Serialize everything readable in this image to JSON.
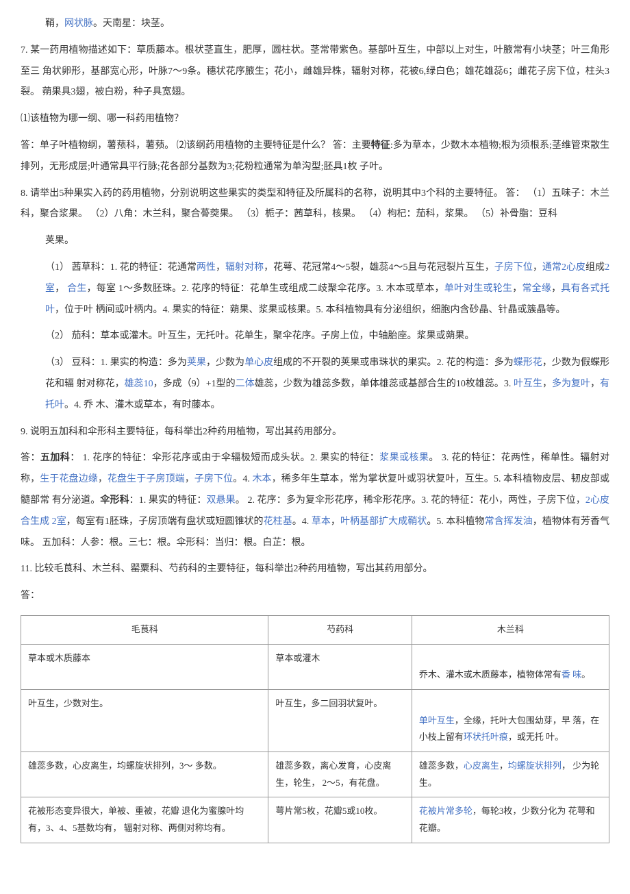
{
  "p1": {
    "pre": "鞘，",
    "link": "网状脉",
    "post": "。天南星：块茎。"
  },
  "q7": "7. 某一药用植物描述如下：草质藤本。根状茎直生，肥厚，圆柱状。茎常带紫色。基部叶互生，中部以上对生，叶腋常有小块茎；叶三角形至三 角状卵形，基部宽心形，叶脉7～9条。穗状花序腋生；花小，雌雄异株，辐射对称，花被6,绿白色；雄花雄蕊6；雌花子房下位，柱头3裂。 蒴果具3翅，被白粉，种子具宽翅。",
  "q7sub": "⑴该植物为哪一纲、哪一科药用植物？",
  "q7ans": {
    "pre": "答：单子叶植物纲，薯蓣科，薯蓣。 ⑵该纲药用植物的主要特征是什么？ 答：主要",
    "bold": "特征",
    "post": ":多为草本，少数木本植物;根为须根系;茎维管束散生排列，无形成层;叶通常具平行脉;花各部分基数为3;花粉粒通常为单沟型;胚具1枚 子叶。"
  },
  "q8": "8.  请举出5种果实入药的药用植物，分别说明这些果实的类型和特征及所属科的名称，说明其中3个科的主要特征。 答： （1）五味子：木兰科，聚合浆果。 （2）八角：木兰科，聚合蓇葖果。 （3）栀子：茜草科，核果。 （4）枸杞：茄科，浆果。 （5）补骨脂：豆科",
  "q8a": "荚果。",
  "q8_1": {
    "prefix": "（1）   茜草科：1. 花的特征：花通常",
    "l1": "两性",
    "t1": "，",
    "l2": "辐射对称",
    "t2": "，花萼、花冠常4～5裂，雄蕊4～5且与花冠裂片互生，",
    "l3": "子房下位",
    "t3": "，",
    "l4": "通常2心皮",
    "t4": "组成",
    "l5": "2室",
    "t5": "，   ",
    "l6": "合生",
    "t6": "，每室 1～多数胚珠。2. 花序的特征：花单生或组成二歧聚伞花序。3. 木本或草本，",
    "l7": "单叶对生或轮生",
    "t7": "，",
    "l8": "常全缘",
    "t8": "，",
    "l9": "具有各式托叶",
    "t9": "，位于叶 柄间或叶柄内。4. 果实的特征：蒴果、浆果或核果。5. 本科植物具有分泌组织，细胞内含砂晶、针晶或簇晶等。"
  },
  "q8_2": "（2）   茄科：草本或灌木。叶互生，无托叶。花单生，聚伞花序。子房上位，中轴胎座。浆果或蒴果。",
  "q8_3": {
    "prefix": "（3）   豆科：1. 果实的构造：多为",
    "l1": "荚果",
    "t1": "，少数为",
    "l2": "单心皮",
    "t2": "组成的不开裂的荚果或串珠状的果实。2. 花的构造：多为",
    "l3": "蝶形花",
    "t3": "，少数为假蝶形花和辐 射对称花，",
    "l4": "雄蕊10",
    "t4": "，多成（9）+1型的",
    "l5": "二体",
    "t5": "雄蕊，少数为雄蕊多数，单体雄蕊或基部合生的10枚雄蕊。3. ",
    "l6": "叶互生",
    "t6": "，",
    "l7": "多为复叶",
    "t7": "，",
    "l8": "有托叶",
    "t8": "。4. 乔 木、灌木或草本，有时藤本。"
  },
  "q9": "9.  说明五加科和伞形科主要特征，每科举出2种药用植物，写出其药用部分。",
  "q9ans": {
    "pre": "答：",
    "b1": "五加科",
    "t1": "： 1. 花序的特征：伞形花序或由于伞辐极短而成头状。2. 果实的特征：",
    "l1": "浆果或核果",
    "t2": "。 3. 花的特征：花两性，稀单性。辐射对称，",
    "l2": "生于花盘边缘",
    "t3": "，",
    "l3": "花盘生于子房顶端",
    "t4": "，",
    "l4": "子房下位",
    "t5": "。4. ",
    "l5": "木本",
    "t6": "，稀多年生草本，常为掌状复叶或羽状复叶，互生。5. 本科植物皮层、韧皮部或髓部常 有分泌道。",
    "b2": "伞形科",
    "t7": "：1. 果实的特征：",
    "l6": "双悬果",
    "t8": "。 2. 花序：多为复伞形花序，稀伞形花序。3. 花的特征：花小，两性，子房下位，",
    "l7": "2心皮合生成 2室",
    "t9": "，每室有1胚珠，子房顶端有盘状或短圆锥状的",
    "l8": "花柱基",
    "t10": "。4. ",
    "l9": "草本",
    "t11": "，",
    "l10": "叶柄基部扩大成鞘状",
    "t12": "。5. 本科植物",
    "l11": "常含挥发油",
    "t13": "，植物体有芳香气味。  五加科：人参：根。三七：根。伞形科：当归：根。白芷：根。"
  },
  "q11": "11.   比较毛茛科、木兰科、罂粟科、芍药科的主要特征，每科举出2种药用植物，写出其药用部分。",
  "q11a": "答：",
  "table": {
    "h1": "毛茛科",
    "h2": "芍药科",
    "h3": "木兰科",
    "r1c1": "草本或木质藤本",
    "r1c2": "草本或灌木",
    "r1c3": {
      "t1": "乔木、灌木或木质藤本，植物体常有",
      "l1": "香 味",
      "t2": "。"
    },
    "r2c1": "叶互生，少数对生。",
    "r2c2": "叶互生，多二回羽状复叶。",
    "r2c3": {
      "l1": "单叶互生",
      "t1": "，全缘，托叶大包围幼芽，早 落，在小枝上留有",
      "l2": "环状托叶痕",
      "t2": "，或无托 叶。"
    },
    "r3c1": "雄蕊多数，心皮离生，均螺旋状排列，3～ 多数。",
    "r3c2": "雄蕊多数，离心发育，心皮离生，轮生， 2～5，有花盘。",
    "r3c3": {
      "t1": "雄蕊多数，",
      "l1": "心皮离生",
      "t2": "，",
      "l2": "均螺旋状排列",
      "t3": "，  少为轮生。"
    },
    "r4c1": "花被形态变异很大，单被、重被，花瓣 退化为蜜腺叶均有，3、4、5基数均有，  辐射对称、两侧对称均有。",
    "r4c2": "萼片常5枚，花瓣5或10枚。",
    "r4c3": {
      "l1": "花被片常多轮",
      "t1": "，每轮3枚，少数分化为 花萼和花瓣。"
    }
  }
}
